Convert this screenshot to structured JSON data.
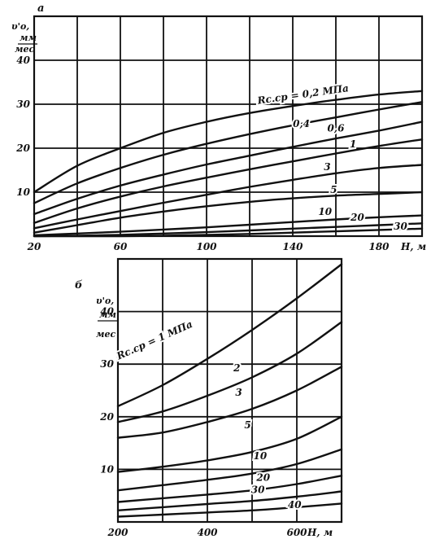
{
  "chart_data": [
    {
      "type": "line",
      "panel_label": "а",
      "ylabel_lines": [
        "υ'o,",
        "мм",
        "мес"
      ],
      "xlabel": "Н, м",
      "xlim": [
        20,
        200
      ],
      "ylim": [
        0,
        50
      ],
      "x_ticks": [
        20,
        40,
        60,
        80,
        100,
        120,
        140,
        160,
        180,
        200
      ],
      "y_ticks": [
        0,
        10,
        20,
        30,
        40,
        50
      ],
      "x_tick_labels": [
        {
          "value": 20,
          "text": "20"
        },
        {
          "value": 60,
          "text": "60"
        },
        {
          "value": 100,
          "text": "100"
        },
        {
          "value": 140,
          "text": "140"
        },
        {
          "value": 180,
          "text": "180"
        }
      ],
      "y_tick_labels": [
        {
          "value": 10,
          "text": "10"
        },
        {
          "value": 20,
          "text": "20"
        },
        {
          "value": 30,
          "text": "30"
        },
        {
          "value": 40,
          "text": "40"
        }
      ],
      "grid": true,
      "series": [
        {
          "name": "Rс.ср = 0,2 МПа",
          "x": [
            20,
            40,
            60,
            80,
            100,
            120,
            140,
            160,
            180,
            200
          ],
          "y": [
            10,
            16,
            20,
            23.5,
            26,
            28,
            29.6,
            31,
            32.2,
            33
          ]
        },
        {
          "name": "0,4",
          "x": [
            20,
            40,
            60,
            80,
            100,
            120,
            140,
            160,
            180,
            200
          ],
          "y": [
            7.5,
            12,
            15.5,
            18.5,
            21,
            23.2,
            25.2,
            27,
            28.8,
            30.5
          ]
        },
        {
          "name": "0,6",
          "x": [
            20,
            40,
            60,
            80,
            100,
            120,
            140,
            160,
            180,
            200
          ],
          "y": [
            5,
            8.5,
            11.5,
            14,
            16.3,
            18.3,
            20.3,
            22.2,
            24,
            26
          ]
        },
        {
          "name": "1",
          "x": [
            20,
            40,
            60,
            80,
            100,
            120,
            140,
            160,
            180,
            200
          ],
          "y": [
            3,
            6.3,
            9,
            11.3,
            13.3,
            15.2,
            17,
            18.8,
            20.5,
            22
          ]
        },
        {
          "name": "3",
          "x": [
            20,
            40,
            60,
            80,
            100,
            120,
            140,
            160,
            180,
            200
          ],
          "y": [
            1.8,
            3.8,
            5.7,
            7.6,
            9.4,
            11.2,
            12.8,
            14.3,
            15.5,
            16.2
          ]
        },
        {
          "name": "5",
          "x": [
            20,
            40,
            60,
            80,
            100,
            120,
            140,
            160,
            180,
            200
          ],
          "y": [
            0.8,
            2.5,
            4.2,
            5.6,
            6.8,
            7.8,
            8.6,
            9.2,
            9.6,
            10
          ]
        },
        {
          "name": "10",
          "x": [
            20,
            40,
            60,
            80,
            100,
            120,
            140,
            160,
            180,
            200
          ],
          "y": [
            0.2,
            0.6,
            1,
            1.5,
            2,
            2.6,
            3.2,
            3.8,
            4.3,
            4.7
          ]
        },
        {
          "name": "20",
          "x": [
            20,
            40,
            60,
            80,
            100,
            120,
            140,
            160,
            180,
            200
          ],
          "y": [
            0,
            0.1,
            0.3,
            0.6,
            0.9,
            1.3,
            1.7,
            2.1,
            2.5,
            2.9
          ]
        },
        {
          "name": "30",
          "x": [
            20,
            60,
            80,
            100,
            120,
            140,
            160,
            180,
            200
          ],
          "y": [
            0,
            0,
            0.1,
            0.3,
            0.5,
            0.8,
            1.1,
            1.4,
            1.7
          ]
        }
      ],
      "curve_labels": [
        {
          "text": "Rс.ср = 0,2 МПа",
          "x": 145,
          "y": 31.5
        },
        {
          "text": "0,4",
          "x": 144,
          "y": 24.8
        },
        {
          "text": "0,6",
          "x": 160,
          "y": 23.8
        },
        {
          "text": "1",
          "x": 168,
          "y": 20.2
        },
        {
          "text": "3",
          "x": 156,
          "y": 15.0
        },
        {
          "text": "5",
          "x": 159,
          "y": 9.8
        },
        {
          "text": "10",
          "x": 155,
          "y": 4.8
        },
        {
          "text": "20",
          "x": 170,
          "y": 3.5
        },
        {
          "text": "30",
          "x": 190,
          "y": 1.5
        }
      ]
    },
    {
      "type": "line",
      "panel_label": "б",
      "ylabel_lines": [
        "υ'o,",
        "мм",
        "мес"
      ],
      "xlabel": "Н, м",
      "xlim": [
        200,
        700
      ],
      "ylim": [
        0,
        50
      ],
      "x_ticks": [
        200,
        300,
        400,
        500,
        600,
        700
      ],
      "y_ticks": [
        0,
        10,
        20,
        30,
        40,
        50
      ],
      "x_tick_labels": [
        {
          "value": 200,
          "text": "200"
        },
        {
          "value": 400,
          "text": "400"
        },
        {
          "value": 600,
          "text": "600"
        }
      ],
      "y_tick_labels": [
        {
          "value": 10,
          "text": "10"
        },
        {
          "value": 20,
          "text": "20"
        },
        {
          "value": 30,
          "text": "30"
        },
        {
          "value": 40,
          "text": "40"
        }
      ],
      "grid": true,
      "series": [
        {
          "name": "Rс.ср = 1 МПа",
          "x": [
            200,
            300,
            400,
            500,
            600,
            700
          ],
          "y": [
            22,
            26,
            31,
            36.5,
            42.5,
            49
          ]
        },
        {
          "name": "2",
          "x": [
            200,
            300,
            400,
            500,
            600,
            700
          ],
          "y": [
            19,
            21,
            24,
            27.5,
            32,
            38
          ]
        },
        {
          "name": "3",
          "x": [
            200,
            300,
            400,
            500,
            600,
            700
          ],
          "y": [
            16,
            17,
            19,
            21.5,
            25,
            29.5
          ]
        },
        {
          "name": "5",
          "x": [
            200,
            300,
            400,
            500,
            600,
            700
          ],
          "y": [
            9.5,
            10.5,
            11.7,
            13.3,
            15.8,
            20
          ]
        },
        {
          "name": "10",
          "x": [
            200,
            300,
            400,
            500,
            600,
            700
          ],
          "y": [
            6,
            7,
            8,
            9.2,
            11,
            13.8
          ]
        },
        {
          "name": "20",
          "x": [
            200,
            300,
            400,
            500,
            600,
            700
          ],
          "y": [
            3.8,
            4.5,
            5.2,
            6,
            7.2,
            8.8
          ]
        },
        {
          "name": "30",
          "x": [
            200,
            300,
            400,
            500,
            600,
            700
          ],
          "y": [
            2.2,
            2.8,
            3.4,
            4,
            4.8,
            5.8
          ]
        },
        {
          "name": "40",
          "x": [
            200,
            300,
            400,
            500,
            600,
            700
          ],
          "y": [
            1,
            1.4,
            1.8,
            2.2,
            2.8,
            3.5
          ]
        }
      ],
      "curve_labels": [
        {
          "text": "Rс.ср = 1 МПа",
          "x": 285,
          "y": 34
        },
        {
          "text": "2",
          "x": 466,
          "y": 28.6
        },
        {
          "text": "3",
          "x": 470,
          "y": 24.0
        },
        {
          "text": "5",
          "x": 490,
          "y": 17.8
        },
        {
          "text": "10",
          "x": 518,
          "y": 11.9
        },
        {
          "text": "20",
          "x": 525,
          "y": 7.8
        },
        {
          "text": "30",
          "x": 513,
          "y": 5.5
        },
        {
          "text": "40",
          "x": 595,
          "y": 2.6
        }
      ]
    }
  ]
}
